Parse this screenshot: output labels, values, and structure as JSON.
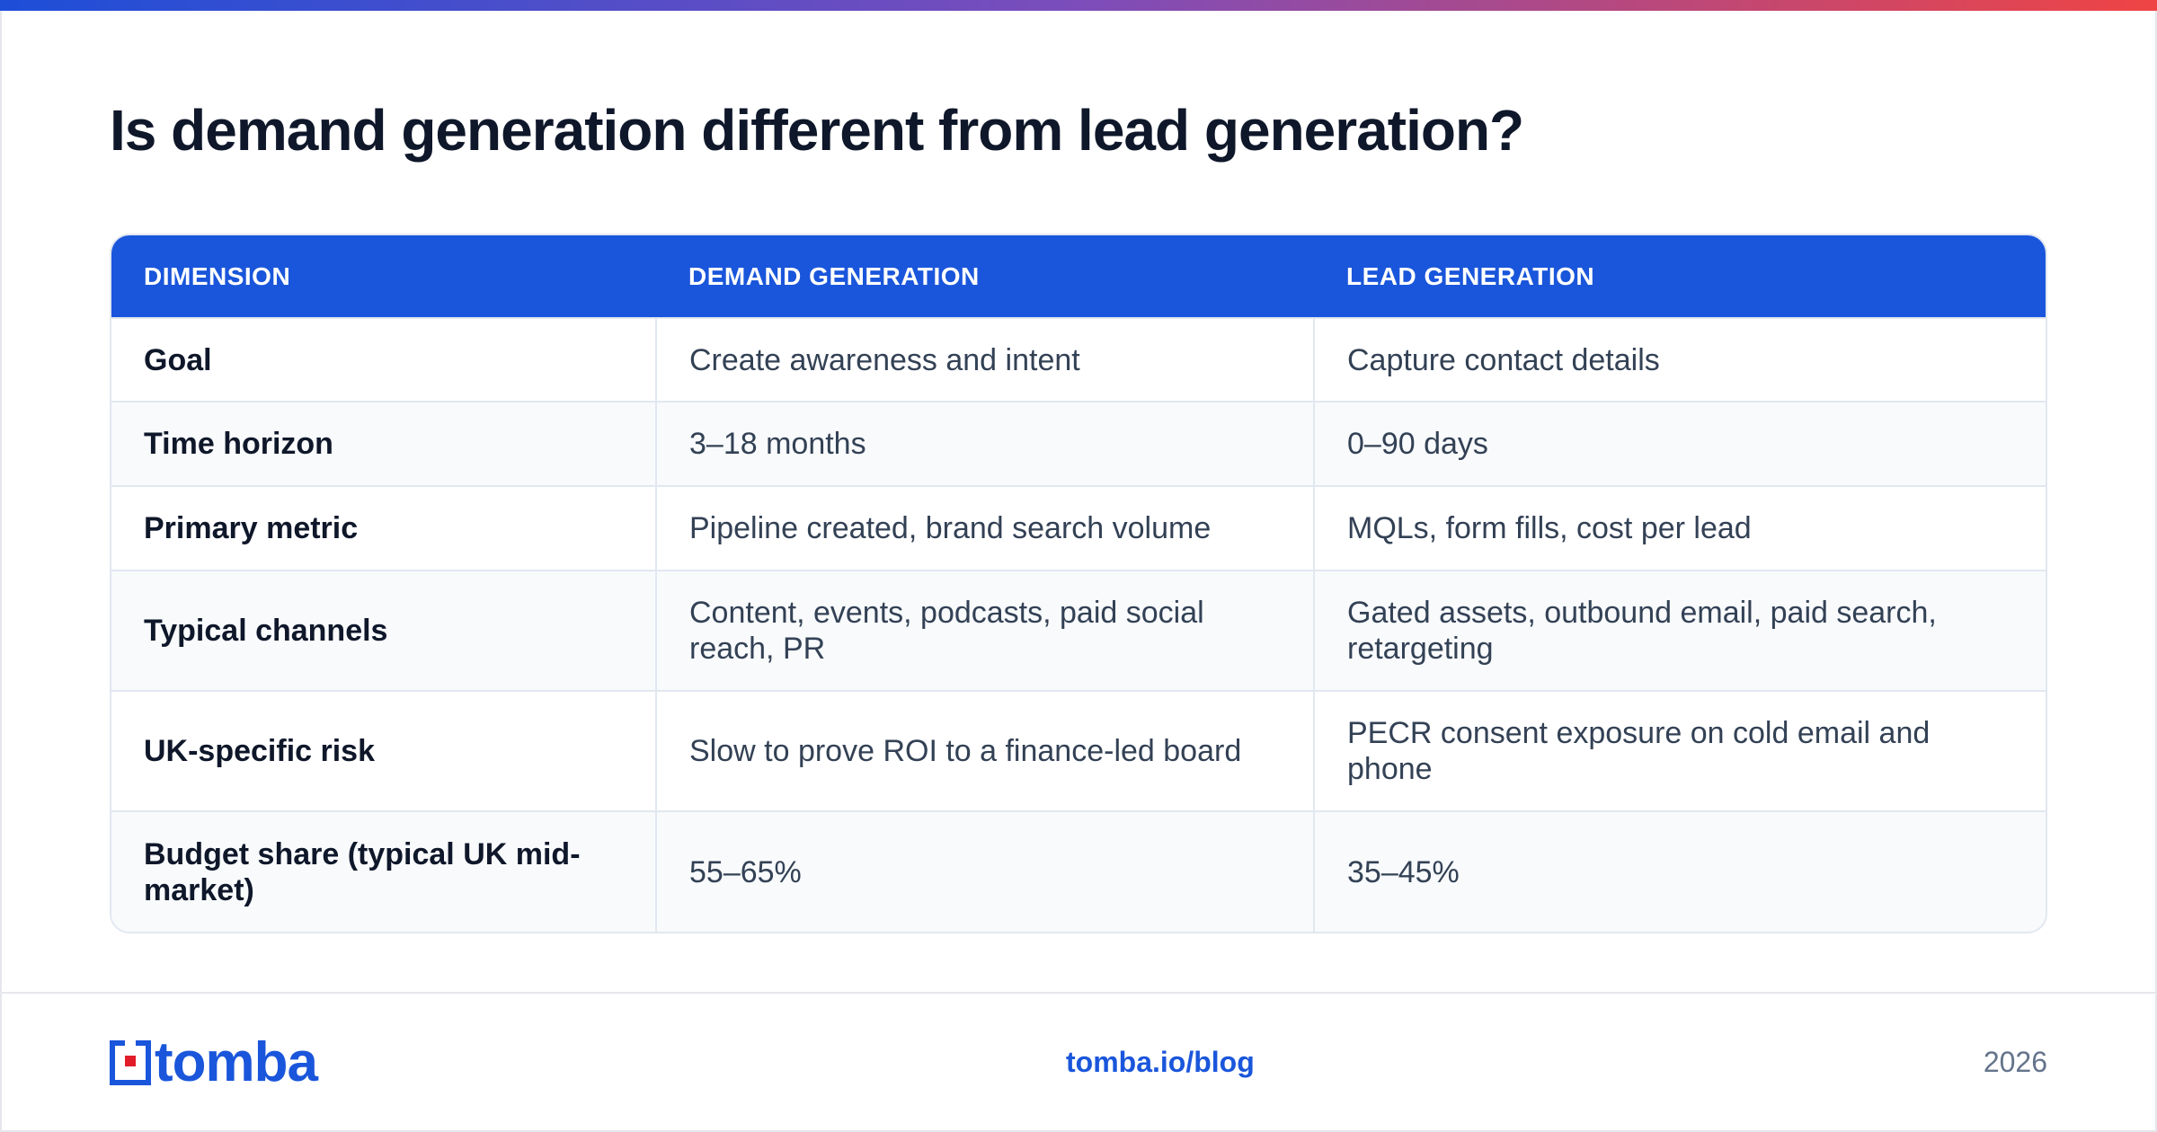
{
  "title": "Is demand generation different from lead generation?",
  "table": {
    "headers": [
      "DIMENSION",
      "DEMAND GENERATION",
      "LEAD GENERATION"
    ],
    "rows": [
      [
        "Goal",
        "Create awareness and intent",
        "Capture contact details"
      ],
      [
        "Time horizon",
        "3–18 months",
        "0–90 days"
      ],
      [
        "Primary metric",
        "Pipeline created, brand search volume",
        "MQLs, form fills, cost per lead"
      ],
      [
        "Typical channels",
        "Content, events, podcasts, paid social reach, PR",
        "Gated assets, outbound email, paid search, retargeting"
      ],
      [
        "UK-specific risk",
        "Slow to prove ROI to a finance-led board",
        "PECR consent exposure on cold email and phone"
      ],
      [
        "Budget share (typical UK mid-market)",
        "55–65%",
        "35–45%"
      ]
    ]
  },
  "footer": {
    "logo_text": "tomba",
    "link": "tomba.io/blog",
    "year": "2026"
  },
  "colors": {
    "accent": "#1a56db",
    "logo_red": "#e11d2a",
    "gradient_start": "#1d4ed8",
    "gradient_end": "#ef4444"
  },
  "icons": {
    "logo_mark": "tomba-logo-icon"
  }
}
